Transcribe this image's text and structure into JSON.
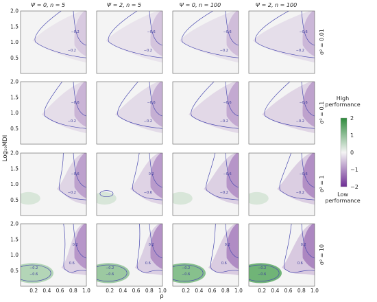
{
  "figure": {
    "y_axis_label": "Log₁₀MDI",
    "x_axis_label": "ρ",
    "col_titles": [
      "Ψ = 0, n = 5",
      "Ψ = 2, n = 5",
      "Ψ = 0, n = 100",
      "Ψ = 2, n = 100"
    ],
    "row_titles": [
      "σ² = 0.01",
      "σ² = 0.1",
      "σ² = 1",
      "σ² = 10"
    ],
    "legend": {
      "high_label": "High performance",
      "low_label": "Low performance",
      "ticks": [
        "2",
        "1",
        "0",
        "−1",
        "−2"
      ]
    },
    "colors": {
      "high": "#3a9a44",
      "neutral": "#f4f4f4",
      "low": "#7a3a9e",
      "contour": "#4a4ab0"
    }
  },
  "chart_data": {
    "type": "heatmap",
    "x": {
      "label": "ρ",
      "ticks": [
        "0.2",
        "0.4",
        "0.6",
        "0.8",
        "1.0"
      ],
      "range": [
        0,
        1
      ]
    },
    "y": {
      "label": "Log₁₀MDI",
      "ticks": [
        "0.5",
        "1.0",
        "1.5",
        "2.0"
      ],
      "range": [
        0,
        2
      ]
    },
    "color_scale": {
      "min": -2,
      "max": 2,
      "low": "Low performance",
      "high": "High performance"
    },
    "panel_grid": {
      "rows": 4,
      "cols": 4
    },
    "panels": [
      {
        "row": 0,
        "col": 0,
        "title": "Ψ = 0, n = 5",
        "row_title": "σ² = 0.01",
        "contour_labels": [
          "−0.2",
          "−0.2"
        ]
      },
      {
        "row": 0,
        "col": 1,
        "title": "Ψ = 2, n = 5",
        "row_title": "σ² = 0.01",
        "contour_labels": [
          "−0.6",
          "−0.2"
        ]
      },
      {
        "row": 0,
        "col": 2,
        "title": "Ψ = 0, n = 100",
        "row_title": "σ² = 0.01",
        "contour_labels": [
          "−0.6",
          "−0.2"
        ]
      },
      {
        "row": 0,
        "col": 3,
        "title": "Ψ = 2, n = 100",
        "row_title": "σ² = 0.01",
        "contour_labels": [
          "−0.6",
          "−0.2"
        ]
      },
      {
        "row": 1,
        "col": 0,
        "title": "Ψ = 0, n = 5",
        "row_title": "σ² = 0.1",
        "contour_labels": [
          "−0.6",
          "−0.2"
        ]
      },
      {
        "row": 1,
        "col": 1,
        "title": "Ψ = 2, n = 5",
        "row_title": "σ² = 0.1",
        "contour_labels": [
          "−0.6",
          "−0.2"
        ]
      },
      {
        "row": 1,
        "col": 2,
        "title": "Ψ = 0, n = 100",
        "row_title": "σ² = 0.1",
        "contour_labels": [
          "−0.6",
          "−0.2"
        ]
      },
      {
        "row": 1,
        "col": 3,
        "title": "Ψ = 2, n = 100",
        "row_title": "σ² = 0.1",
        "contour_labels": [
          "−0.6",
          "−0.2"
        ]
      },
      {
        "row": 2,
        "col": 0,
        "title": "Ψ = 0, n = 5",
        "row_title": "σ² = 1",
        "contour_labels": [
          "−0.6",
          "−0.2"
        ]
      },
      {
        "row": 2,
        "col": 1,
        "title": "Ψ = 2, n = 5",
        "row_title": "σ² = 1",
        "contour_labels": [
          "0.2",
          "−0.6"
        ]
      },
      {
        "row": 2,
        "col": 2,
        "title": "Ψ = 0, n = 100",
        "row_title": "σ² = 1",
        "contour_labels": [
          "−0.6",
          "−0.2"
        ]
      },
      {
        "row": 2,
        "col": 3,
        "title": "Ψ = 2, n = 100",
        "row_title": "σ² = 1",
        "contour_labels": [
          "−0.6",
          "−0.2"
        ]
      },
      {
        "row": 3,
        "col": 0,
        "title": "Ψ = 0, n = 5",
        "row_title": "σ² = 10",
        "contour_labels": [
          "0.2",
          "0.6",
          "−0.2",
          "−0.6"
        ]
      },
      {
        "row": 3,
        "col": 1,
        "title": "Ψ = 2, n = 5",
        "row_title": "σ² = 10",
        "contour_labels": [
          "0.2",
          "0.6",
          "−0.2",
          "−0.6"
        ]
      },
      {
        "row": 3,
        "col": 2,
        "title": "Ψ = 0, n = 100",
        "row_title": "σ² = 10",
        "contour_labels": [
          "0.2",
          "0.6",
          "−0.2",
          "−0.6"
        ]
      },
      {
        "row": 3,
        "col": 3,
        "title": "Ψ = 2, n = 100",
        "row_title": "σ² = 10",
        "contour_labels": [
          "0.2",
          "0.6",
          "−0.2",
          "−0.6"
        ]
      }
    ]
  }
}
